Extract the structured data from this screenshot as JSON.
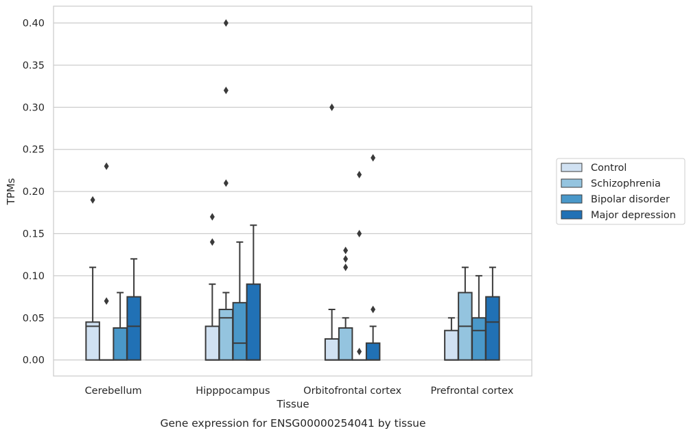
{
  "chart_data": {
    "type": "box",
    "title": "",
    "caption": "Gene expression for ENSG00000254041 by tissue",
    "xlabel": "Tissue",
    "ylabel": "TPMs",
    "ylim": [
      -0.019,
      0.42
    ],
    "yticks": [
      0.0,
      0.05,
      0.1,
      0.15,
      0.2,
      0.25,
      0.3,
      0.35,
      0.4
    ],
    "ytick_labels": [
      "0.00",
      "0.05",
      "0.10",
      "0.15",
      "0.20",
      "0.25",
      "0.30",
      "0.35",
      "0.40"
    ],
    "grid": "horizontal",
    "legend_position": "right",
    "categories": [
      "Cerebellum",
      "Hipppocampus",
      "Orbitofrontal cortex",
      "Prefrontal cortex"
    ],
    "series": [
      {
        "name": "Control",
        "color": "#d0e1f2",
        "boxes": [
          {
            "min": 0.0,
            "q1": 0.0,
            "median": 0.04,
            "q3": 0.045,
            "max": 0.11,
            "outliers": [
              0.19
            ]
          },
          {
            "min": 0.0,
            "q1": 0.0,
            "median": 0.0,
            "q3": 0.04,
            "max": 0.09,
            "outliers": [
              0.14,
              0.17
            ]
          },
          {
            "min": 0.0,
            "q1": 0.0,
            "median": 0.0,
            "q3": 0.025,
            "max": 0.06,
            "outliers": [
              0.3
            ]
          },
          {
            "min": 0.0,
            "q1": 0.0,
            "median": 0.0,
            "q3": 0.035,
            "max": 0.05,
            "outliers": []
          }
        ]
      },
      {
        "name": "Schizophrenia",
        "color": "#94c4df",
        "boxes": [
          {
            "min": 0.0,
            "q1": 0.0,
            "median": 0.0,
            "q3": 0.0,
            "max": 0.0,
            "outliers": [
              0.07,
              0.23
            ]
          },
          {
            "min": 0.0,
            "q1": 0.0,
            "median": 0.05,
            "q3": 0.06,
            "max": 0.08,
            "outliers": [
              0.21,
              0.32,
              0.4
            ]
          },
          {
            "min": 0.0,
            "q1": 0.0,
            "median": 0.0,
            "q3": 0.038,
            "max": 0.05,
            "outliers": [
              0.11,
              0.12,
              0.13
            ]
          },
          {
            "min": 0.0,
            "q1": 0.0,
            "median": 0.04,
            "q3": 0.08,
            "max": 0.11,
            "outliers": []
          }
        ]
      },
      {
        "name": "Bipolar disorder",
        "color": "#4a98c9",
        "boxes": [
          {
            "min": 0.0,
            "q1": 0.0,
            "median": 0.0,
            "q3": 0.038,
            "max": 0.08,
            "outliers": []
          },
          {
            "min": 0.0,
            "q1": 0.0,
            "median": 0.02,
            "q3": 0.068,
            "max": 0.14,
            "outliers": []
          },
          {
            "min": 0.0,
            "q1": 0.0,
            "median": 0.0,
            "q3": 0.0,
            "max": 0.0,
            "outliers": [
              0.01,
              0.15,
              0.22
            ]
          },
          {
            "min": 0.0,
            "q1": 0.0,
            "median": 0.035,
            "q3": 0.05,
            "max": 0.1,
            "outliers": []
          }
        ]
      },
      {
        "name": "Major depression",
        "color": "#2171b5",
        "boxes": [
          {
            "min": 0.0,
            "q1": 0.0,
            "median": 0.04,
            "q3": 0.075,
            "max": 0.12,
            "outliers": []
          },
          {
            "min": 0.0,
            "q1": 0.0,
            "median": 0.0,
            "q3": 0.09,
            "max": 0.16,
            "outliers": []
          },
          {
            "min": 0.0,
            "q1": 0.0,
            "median": 0.0,
            "q3": 0.02,
            "max": 0.04,
            "outliers": [
              0.06,
              0.24
            ]
          },
          {
            "min": 0.0,
            "q1": 0.0,
            "median": 0.045,
            "q3": 0.075,
            "max": 0.11,
            "outliers": []
          }
        ]
      }
    ]
  }
}
